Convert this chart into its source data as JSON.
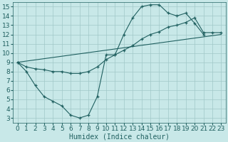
{
  "xlabel": "Humidex (Indice chaleur)",
  "background_color": "#c8e8e8",
  "grid_color": "#a0c8c8",
  "line_color": "#206060",
  "xlim": [
    -0.5,
    23.5
  ],
  "ylim": [
    2.5,
    15.5
  ],
  "xticks": [
    0,
    1,
    2,
    3,
    4,
    5,
    6,
    7,
    8,
    9,
    10,
    11,
    12,
    13,
    14,
    15,
    16,
    17,
    18,
    19,
    20,
    21,
    22,
    23
  ],
  "yticks": [
    3,
    4,
    5,
    6,
    7,
    8,
    9,
    10,
    11,
    12,
    13,
    14,
    15
  ],
  "line1_x": [
    0,
    1,
    2,
    3,
    4,
    5,
    6,
    7,
    8,
    9,
    10,
    11,
    12,
    13,
    14,
    15,
    16,
    17,
    18,
    19,
    20,
    21
  ],
  "line1_y": [
    9,
    8,
    6.5,
    5.3,
    4.8,
    4.3,
    3.3,
    3.0,
    3.3,
    5.3,
    9.8,
    9.8,
    12.0,
    13.8,
    15.0,
    15.2,
    15.2,
    14.3,
    14.0,
    14.3,
    13.2,
    12.0
  ],
  "line2_x": [
    0,
    1,
    2,
    3,
    4,
    5,
    6,
    7,
    8,
    9,
    10,
    11,
    12,
    13,
    14,
    15,
    16,
    17,
    18,
    19,
    20,
    21,
    22,
    23
  ],
  "line2_y": [
    9,
    8.5,
    8.3,
    8.2,
    8.0,
    8.0,
    7.8,
    7.8,
    8.0,
    8.5,
    9.3,
    9.8,
    10.3,
    10.8,
    11.5,
    12.0,
    12.3,
    12.8,
    13.0,
    13.3,
    13.8,
    12.2,
    12.2,
    12.2
  ],
  "line3_x": [
    0,
    23
  ],
  "line3_y": [
    9,
    12
  ],
  "font_size_xlabel": 7,
  "font_size_ticks": 6.5
}
